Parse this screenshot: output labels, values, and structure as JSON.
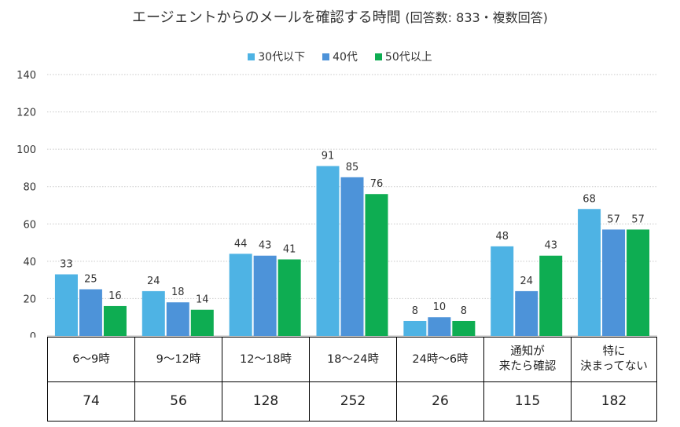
{
  "chart_data": {
    "type": "bar",
    "title": "エージェントからのメールを確認する時間",
    "subtitle": "(回答数: 833・複数回答)",
    "categories": [
      "6～9時",
      "9～12時",
      "12～18時",
      "18～24時",
      "24時～6時",
      "通知が\n来たら確認",
      "特に\n決まってない"
    ],
    "series": [
      {
        "name": "30代以下",
        "color": "#4eb3e4",
        "values": [
          33,
          24,
          44,
          91,
          8,
          48,
          68
        ]
      },
      {
        "name": "40代",
        "color": "#4d93d9",
        "values": [
          25,
          18,
          43,
          85,
          10,
          24,
          57
        ]
      },
      {
        "name": "50代以上",
        "color": "#0ead52",
        "values": [
          16,
          14,
          41,
          76,
          8,
          43,
          57
        ]
      }
    ],
    "totals": [
      "74",
      "56",
      "128",
      "252",
      "26",
      "115",
      "182"
    ],
    "yticks": [
      "0",
      "20",
      "40",
      "60",
      "80",
      "100",
      "120",
      "140"
    ],
    "ylim": [
      0,
      140
    ],
    "grid": true,
    "legend_position": "top"
  }
}
